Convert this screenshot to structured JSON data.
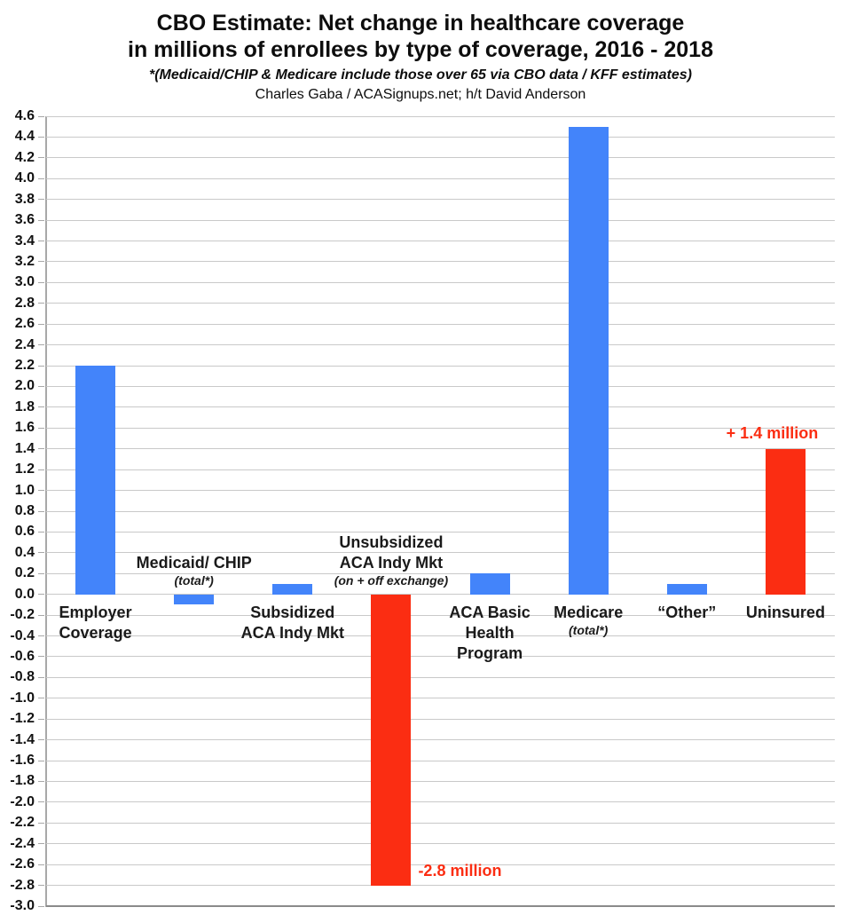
{
  "title": {
    "line1": "CBO Estimate: Net change in healthcare coverage",
    "line2": "in millions of enrollees by type of coverage, 2016 - 2018",
    "note": "*(Medicaid/CHIP & Medicare include those over 65 via CBO data / KFF estimates)",
    "credit": "Charles Gaba / ACASignups.net; h/t David Anderson"
  },
  "chart_data": {
    "type": "bar",
    "title": "CBO Estimate: Net change in healthcare coverage in millions of enrollees by type of coverage, 2016 - 2018",
    "subtitle": "*(Medicaid/CHIP & Medicare include those over 65 via CBO data / KFF estimates)",
    "attribution": "Charles Gaba / ACASignups.net; h/t David Anderson",
    "xlabel": "",
    "ylabel": "",
    "units": "millions of enrollees",
    "ylim": [
      -3.0,
      4.6
    ],
    "ytick_step": 0.2,
    "grid": true,
    "legend": "none",
    "yticks": [
      "4.6",
      "4.4",
      "4.2",
      "4.0",
      "3.8",
      "3.6",
      "3.4",
      "3.2",
      "3.0",
      "2.8",
      "2.6",
      "2.4",
      "2.2",
      "2.0",
      "1.8",
      "1.6",
      "1.4",
      "1.2",
      "1.0",
      "0.8",
      "0.6",
      "0.4",
      "0.2",
      "0.0",
      "-0.2",
      "-0.4",
      "-0.6",
      "-0.8",
      "-1.0",
      "-1.2",
      "-1.4",
      "-1.6",
      "-1.8",
      "-2.0",
      "-2.2",
      "-2.4",
      "-2.6",
      "-2.8",
      "-3.0"
    ],
    "colors": {
      "blue": "#4384FA",
      "red": "#FB2D12"
    },
    "categories": [
      "Employer Coverage",
      "Medicaid/ CHIP (total*)",
      "Subsidized ACA Indy Mkt",
      "Unsubsidized ACA Indy Mkt (on + off exchange)",
      "ACA Basic Health Program",
      "Medicare (total*)",
      "“Other”",
      "Uninsured"
    ],
    "values": [
      2.2,
      -0.1,
      0.1,
      -2.8,
      0.2,
      4.5,
      0.1,
      1.4
    ],
    "bars": [
      {
        "label_lines": [
          "Employer",
          "Coverage"
        ],
        "sub_line": null,
        "value": 2.2,
        "color": "blue",
        "annotation": null
      },
      {
        "label_lines": [
          "Medicaid/ CHIP"
        ],
        "sub_line": "(total*)",
        "value": -0.1,
        "color": "blue",
        "annotation": null
      },
      {
        "label_lines": [
          "Subsidized",
          "ACA Indy Mkt"
        ],
        "sub_line": null,
        "value": 0.1,
        "color": "blue",
        "annotation": null
      },
      {
        "label_lines": [
          "Unsubsidized",
          "ACA Indy Mkt"
        ],
        "sub_line": "(on + off exchange)",
        "value": -2.8,
        "color": "red",
        "annotation": "-2.8 million"
      },
      {
        "label_lines": [
          "ACA Basic",
          "Health",
          "Program"
        ],
        "sub_line": null,
        "value": 0.2,
        "color": "blue",
        "annotation": null
      },
      {
        "label_lines": [
          "Medicare"
        ],
        "sub_line": "(total*)",
        "value": 4.5,
        "color": "blue",
        "annotation": null
      },
      {
        "label_lines": [
          "“Other”"
        ],
        "sub_line": null,
        "value": 0.1,
        "color": "blue",
        "annotation": null
      },
      {
        "label_lines": [
          "Uninsured"
        ],
        "sub_line": null,
        "value": 1.4,
        "color": "red",
        "annotation": "+ 1.4 million"
      }
    ]
  }
}
